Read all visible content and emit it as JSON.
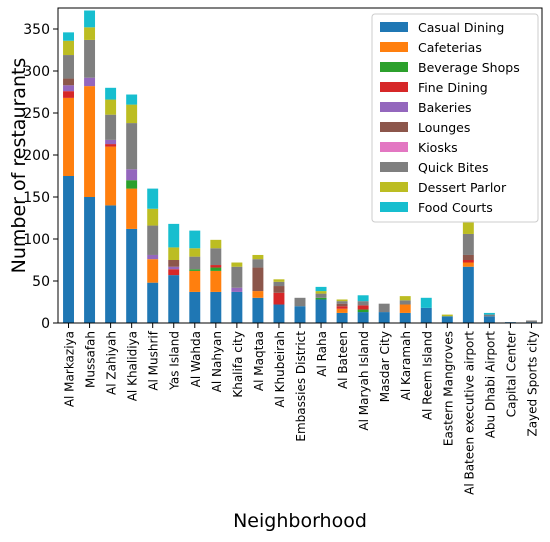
{
  "chart_data": {
    "type": "bar",
    "stacked": true,
    "xlabel": "Neighborhood",
    "ylabel": "Number of restaurants",
    "ylim": [
      0,
      375
    ],
    "yticks": [
      0,
      50,
      100,
      150,
      200,
      250,
      300,
      350
    ],
    "grid": false,
    "legend_position": "top-right",
    "categories": [
      "Al Markaziya",
      "Mussafah",
      "Al Zahiyah",
      "Al Khalidiya",
      "Al Mushrif",
      "Yas Island",
      "Al Wahda",
      "Al Nahyan",
      "Khalifa city",
      "Al Maqtaa",
      "Al Khubeirah",
      "Embassies District",
      "Al Raha",
      "Al Bateen",
      "Al Maryah Island",
      "Masdar City",
      "Al Karamah",
      "Al Reem Island",
      "Eastern Mangroves",
      "Al Bateen executive airport",
      "Abu Dhabi Airport",
      "Capital Center",
      "Zayed Sports city"
    ],
    "series": [
      {
        "name": "Casual Dining",
        "color": "#1f77b4",
        "values": [
          175,
          150,
          140,
          112,
          48,
          57,
          37,
          37,
          37,
          30,
          22,
          20,
          28,
          12,
          13,
          13,
          12,
          18,
          8,
          67,
          8,
          1,
          1
        ]
      },
      {
        "name": "Cafeterias",
        "color": "#ff7f0e",
        "values": [
          93,
          132,
          70,
          48,
          28,
          0,
          25,
          25,
          0,
          8,
          0,
          0,
          0,
          5,
          0,
          0,
          10,
          0,
          0,
          5,
          0,
          0,
          0
        ]
      },
      {
        "name": "Beverage Shops",
        "color": "#2ca02c",
        "values": [
          0,
          0,
          0,
          10,
          0,
          0,
          2,
          4,
          0,
          0,
          0,
          0,
          2,
          0,
          3,
          0,
          0,
          0,
          0,
          0,
          0,
          0,
          0
        ]
      },
      {
        "name": "Fine Dining",
        "color": "#d62728",
        "values": [
          8,
          0,
          3,
          0,
          0,
          7,
          0,
          3,
          0,
          0,
          14,
          0,
          0,
          3,
          5,
          0,
          0,
          0,
          0,
          3,
          0,
          0,
          0
        ]
      },
      {
        "name": "Bakeries",
        "color": "#9467bd",
        "values": [
          7,
          10,
          5,
          13,
          5,
          3,
          0,
          0,
          5,
          0,
          0,
          0,
          0,
          0,
          0,
          0,
          0,
          0,
          0,
          0,
          0,
          0,
          0
        ]
      },
      {
        "name": "Lounges",
        "color": "#8c564b",
        "values": [
          8,
          0,
          0,
          0,
          0,
          8,
          0,
          0,
          0,
          28,
          8,
          0,
          0,
          3,
          0,
          0,
          0,
          0,
          0,
          6,
          0,
          0,
          0
        ]
      },
      {
        "name": "Kiosks",
        "color": "#e377c2",
        "values": [
          0,
          0,
          0,
          0,
          0,
          0,
          0,
          0,
          0,
          0,
          0,
          0,
          0,
          0,
          0,
          0,
          0,
          0,
          0,
          0,
          0,
          0,
          0
        ]
      },
      {
        "name": "Quick Bites",
        "color": "#7f7f7f",
        "values": [
          28,
          45,
          30,
          55,
          35,
          0,
          15,
          20,
          25,
          10,
          5,
          10,
          5,
          3,
          5,
          10,
          5,
          0,
          0,
          25,
          2,
          0,
          2
        ]
      },
      {
        "name": "Dessert Parlor",
        "color": "#bcbd22",
        "values": [
          17,
          15,
          18,
          22,
          20,
          15,
          10,
          10,
          5,
          5,
          3,
          0,
          3,
          2,
          0,
          0,
          5,
          0,
          2,
          15,
          0,
          0,
          0
        ]
      },
      {
        "name": "Food Courts",
        "color": "#17becf",
        "values": [
          10,
          20,
          14,
          12,
          24,
          28,
          21,
          0,
          0,
          0,
          0,
          0,
          5,
          0,
          7,
          0,
          0,
          12,
          0,
          0,
          2,
          0,
          0
        ]
      }
    ]
  }
}
